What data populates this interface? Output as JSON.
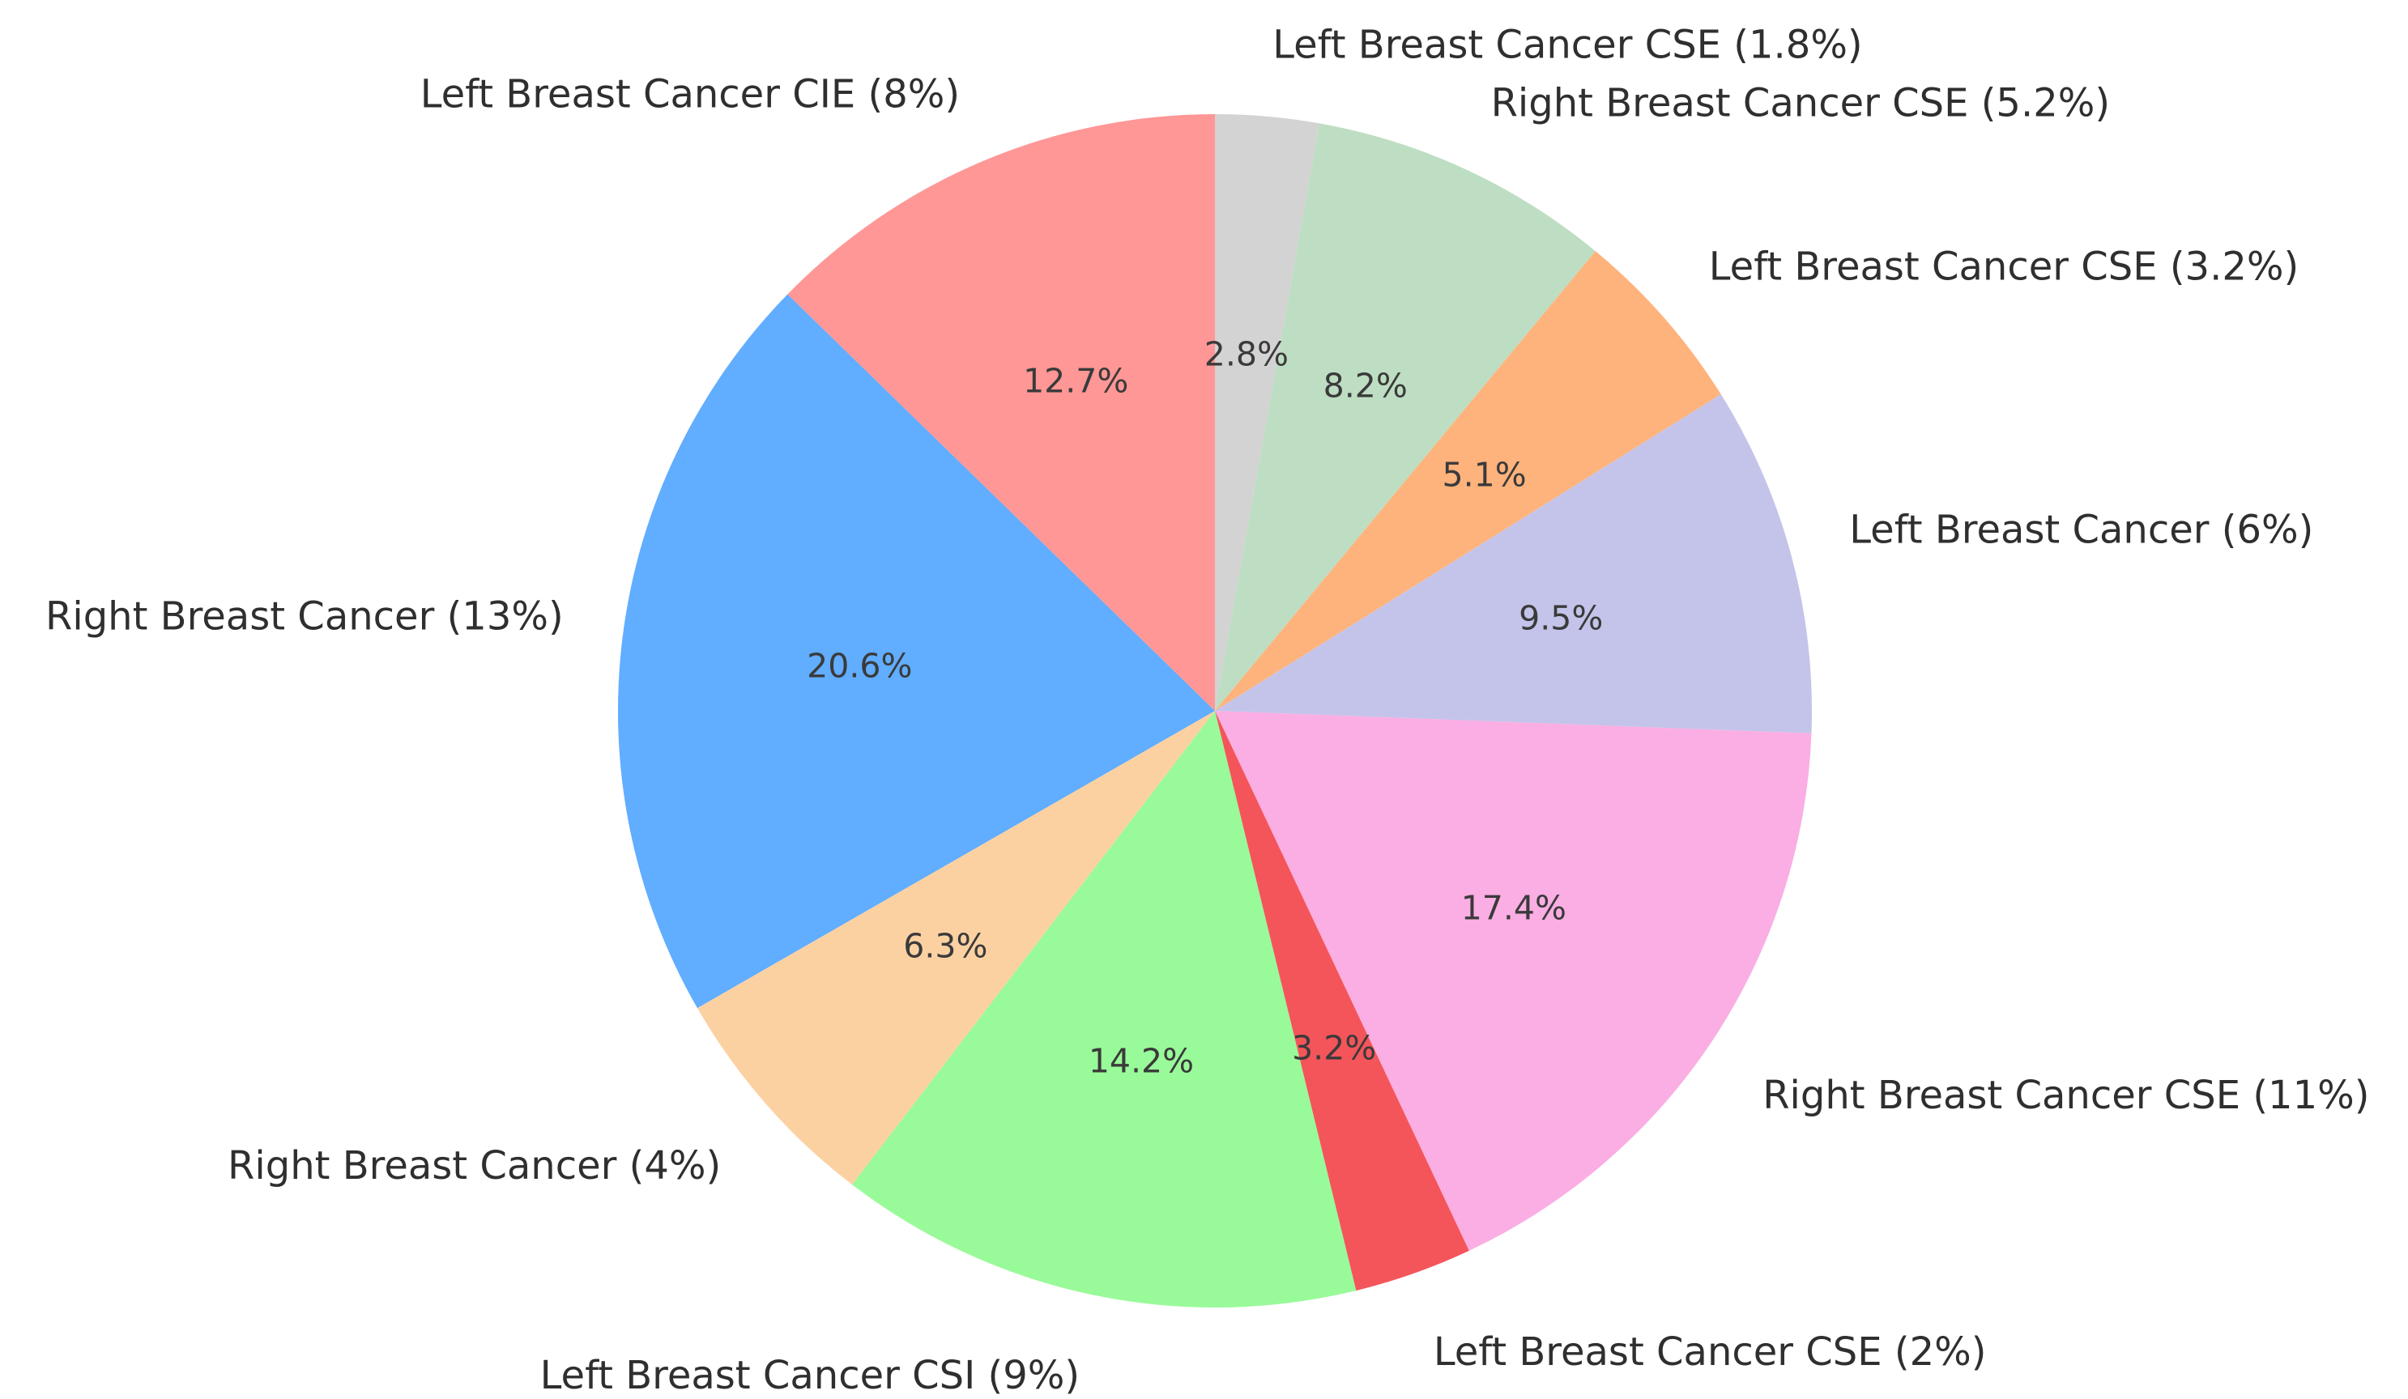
{
  "figure": {
    "background_color": "#ffffff",
    "label_text_color": "#2f2f2f",
    "pct_text_color": "#3a3a3a"
  },
  "chart_data": {
    "type": "pie",
    "title": "",
    "start_angle": "12-oclock",
    "direction": "clockwise",
    "legend_position": "none",
    "autopct_distance": 0.6,
    "label_distance": 1.1,
    "slices": [
      {
        "label": "Left Breast Cancer CSE (1.8%)",
        "pct_label": "2.8%",
        "value": 2.8,
        "color": "#d3d3d3"
      },
      {
        "label": "Right Breast Cancer CSE (5.2%)",
        "pct_label": "8.2%",
        "value": 8.2,
        "color": "#bedec3"
      },
      {
        "label": "Left Breast Cancer CSE (3.2%)",
        "pct_label": "5.1%",
        "value": 5.1,
        "color": "#ffb37c"
      },
      {
        "label": "Left Breast Cancer (6%)",
        "pct_label": "9.5%",
        "value": 9.5,
        "color": "#c4c4ea"
      },
      {
        "label": "Right Breast Cancer CSE (11%)",
        "pct_label": "17.4%",
        "value": 17.4,
        "color": "#faaee3"
      },
      {
        "label": "Left Breast Cancer CSE (2%)",
        "pct_label": "3.2%",
        "value": 3.2,
        "color": "#f4555a"
      },
      {
        "label": "Left Breast Cancer CSI (9%)",
        "pct_label": "14.2%",
        "value": 14.2,
        "color": "#99fa99"
      },
      {
        "label": "Right Breast Cancer (4%)",
        "pct_label": "6.3%",
        "value": 6.3,
        "color": "#fcd1a2"
      },
      {
        "label": "Right Breast Cancer (13%)",
        "pct_label": "20.6%",
        "value": 20.6,
        "color": "#61adff"
      },
      {
        "label": "Left Breast Cancer CIE (8%)",
        "pct_label": "12.7%",
        "value": 12.7,
        "color": "#ff9796"
      }
    ]
  }
}
